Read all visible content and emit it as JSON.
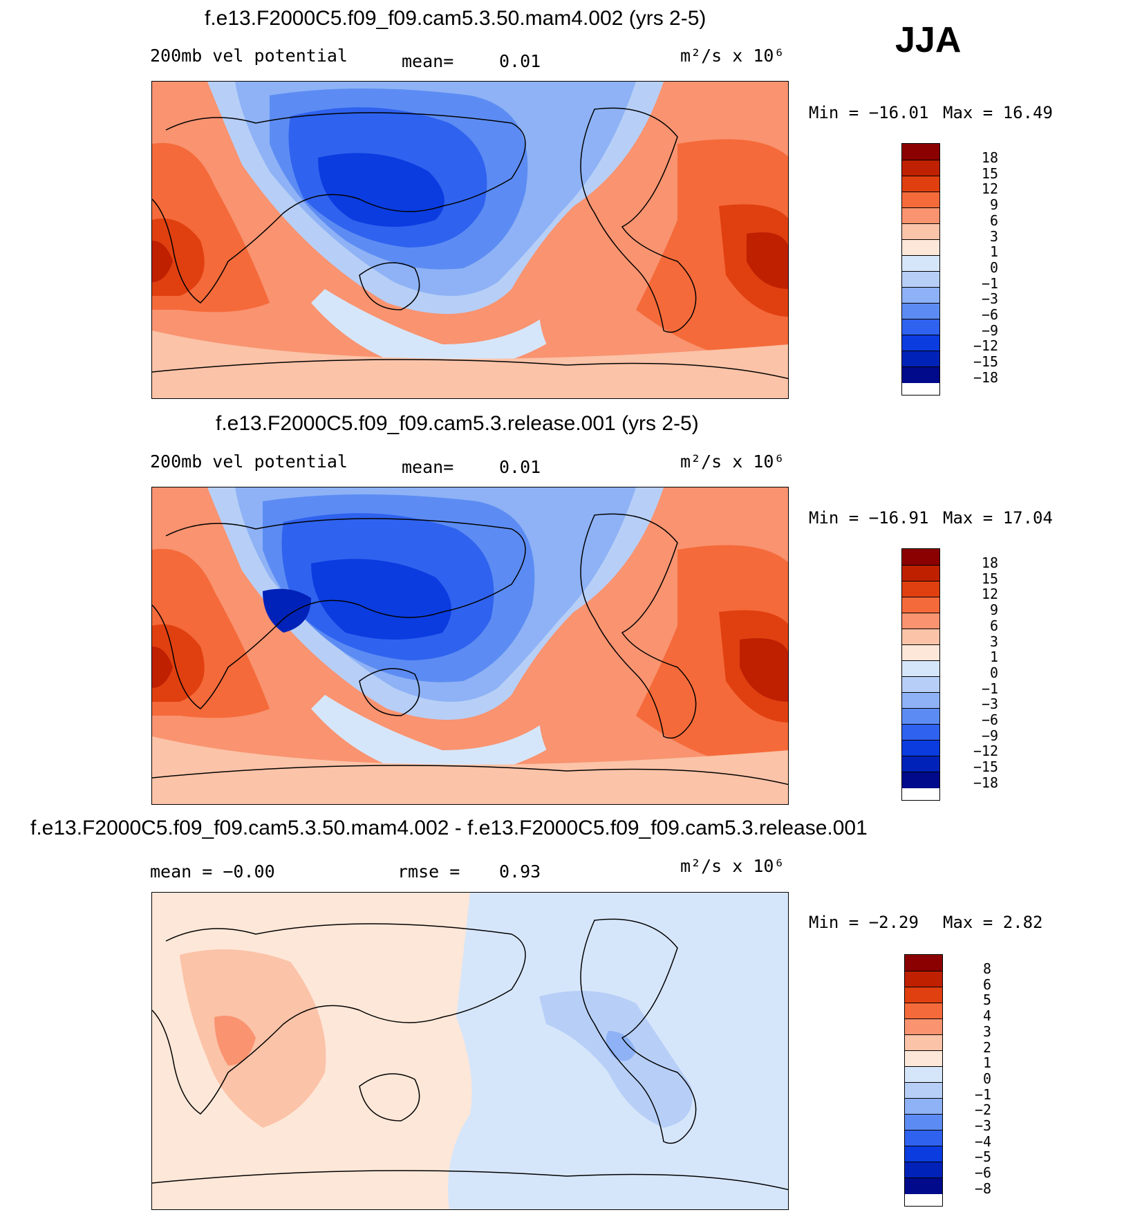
{
  "season": "JJA",
  "panels": [
    {
      "title": "f.e13.F2000C5.f09_f09.cam5.3.50.mam4.002 (yrs 2-5)",
      "left_label": "200mb  vel  potential",
      "center_label": "mean=",
      "center_value": "0.01",
      "units": "m²/s x 10⁶",
      "min_label": "Min  =  −16.01",
      "max_label": "Max  =   16.49",
      "colorbar_ticks": [
        "18",
        "15",
        "12",
        "9",
        "6",
        "3",
        "1",
        "0",
        "−1",
        "−3",
        "−6",
        "−9",
        "−12",
        "−15",
        "−18"
      ]
    },
    {
      "title": "f.e13.F2000C5.f09_f09.cam5.3.release.001 (yrs 2-5)",
      "left_label": "200mb  vel  potential",
      "center_label": "mean=",
      "center_value": "0.01",
      "units": "m²/s x 10⁶",
      "min_label": "Min  =  −16.91",
      "max_label": "Max  =   17.04",
      "colorbar_ticks": [
        "18",
        "15",
        "12",
        "9",
        "6",
        "3",
        "1",
        "0",
        "−1",
        "−3",
        "−6",
        "−9",
        "−12",
        "−15",
        "−18"
      ]
    },
    {
      "title": "f.e13.F2000C5.f09_f09.cam5.3.50.mam4.002 - f.e13.F2000C5.f09_f09.cam5.3.release.001",
      "left_label": "mean =   −0.00",
      "center_label": "rmse =",
      "center_value": "0.93",
      "units": "m²/s x 10⁶",
      "min_label": "Min  =   −2.29",
      "max_label": "Max  =    2.82",
      "colorbar_ticks": [
        "8",
        "6",
        "5",
        "4",
        "3",
        "2",
        "1",
        "0",
        "−1",
        "−2",
        "−3",
        "−4",
        "−5",
        "−6",
        "−8"
      ]
    }
  ],
  "colors": {
    "bands": [
      "#8b0000",
      "#bf2000",
      "#e04010",
      "#f56a3a",
      "#f99370",
      "#fbc3a8",
      "#fde7d8",
      "#d6e6fa",
      "#b7cff7",
      "#8eb2f5",
      "#5c8cf3",
      "#2f62ee",
      "#0a3ce0",
      "#0022b8",
      "#000a8a"
    ]
  }
}
